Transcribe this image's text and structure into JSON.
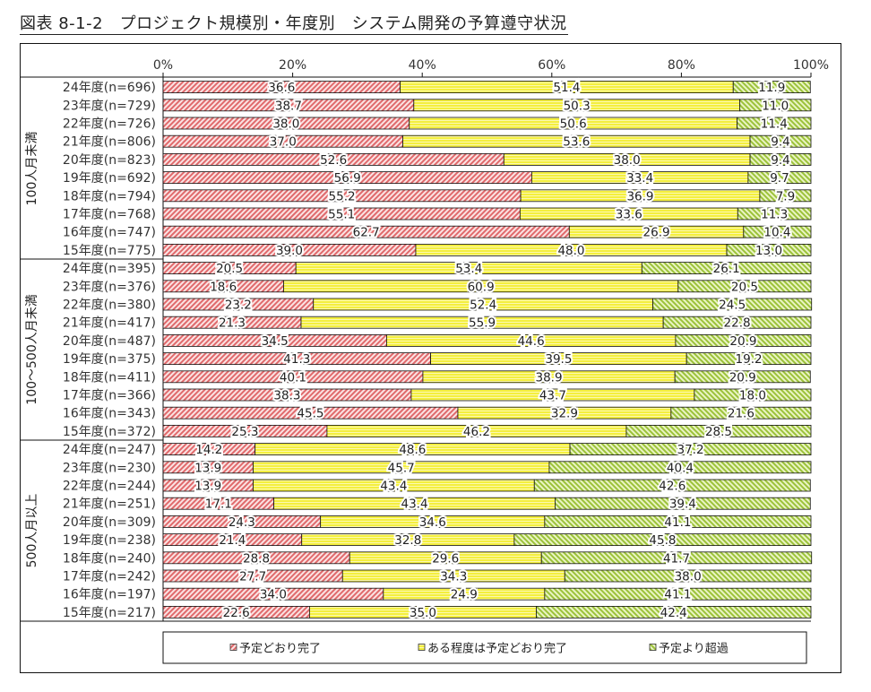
{
  "title": "図表 8-1-2　プロジェクト規模別・年度別　システム開発の予算遵守状況",
  "chart_data": {
    "type": "bar",
    "orientation": "horizontal",
    "stacked": "percent",
    "title": "図表 8-1-2　プロジェクト規模別・年度別　システム開発の予算遵守状況",
    "xlabel": "",
    "ylabel": "",
    "xlim": [
      0,
      100
    ],
    "x_ticks": [
      "0%",
      "20%",
      "40%",
      "60%",
      "80%",
      "100%"
    ],
    "grid": false,
    "legend_position": "bottom",
    "series": [
      {
        "name": "予定どおり完了",
        "color": "#e8787a",
        "pattern": "diagonal-red"
      },
      {
        "name": "ある程度は予定どおり完了",
        "color": "#f6f25a",
        "pattern": "horizontal-yellow"
      },
      {
        "name": "予定より超過",
        "color": "#a8cc4a",
        "pattern": "diagonal-green"
      }
    ],
    "groups": [
      {
        "label": "100人月未満",
        "rows": [
          {
            "label": "24年度(n=696)",
            "values": [
              36.6,
              51.4,
              11.9
            ]
          },
          {
            "label": "23年度(n=729)",
            "values": [
              38.7,
              50.3,
              11.0
            ]
          },
          {
            "label": "22年度(n=726)",
            "values": [
              38.0,
              50.6,
              11.4
            ]
          },
          {
            "label": "21年度(n=806)",
            "values": [
              37.0,
              53.6,
              9.4
            ]
          },
          {
            "label": "20年度(n=823)",
            "values": [
              52.6,
              38.0,
              9.4
            ]
          },
          {
            "label": "19年度(n=692)",
            "values": [
              56.9,
              33.4,
              9.7
            ]
          },
          {
            "label": "18年度(n=794)",
            "values": [
              55.2,
              36.9,
              7.9
            ]
          },
          {
            "label": "17年度(n=768)",
            "values": [
              55.1,
              33.6,
              11.3
            ]
          },
          {
            "label": "16年度(n=747)",
            "values": [
              62.7,
              26.9,
              10.4
            ]
          },
          {
            "label": "15年度(n=775)",
            "values": [
              39.0,
              48.0,
              13.0
            ]
          }
        ]
      },
      {
        "label": "100～500人月未満",
        "rows": [
          {
            "label": "24年度(n=395)",
            "values": [
              20.5,
              53.4,
              26.1
            ]
          },
          {
            "label": "23年度(n=376)",
            "values": [
              18.6,
              60.9,
              20.5
            ]
          },
          {
            "label": "22年度(n=380)",
            "values": [
              23.2,
              52.4,
              24.5
            ]
          },
          {
            "label": "21年度(n=417)",
            "values": [
              21.3,
              55.9,
              22.8
            ]
          },
          {
            "label": "20年度(n=487)",
            "values": [
              34.5,
              44.6,
              20.9
            ]
          },
          {
            "label": "19年度(n=375)",
            "values": [
              41.3,
              39.5,
              19.2
            ]
          },
          {
            "label": "18年度(n=411)",
            "values": [
              40.1,
              38.9,
              20.9
            ]
          },
          {
            "label": "17年度(n=366)",
            "values": [
              38.3,
              43.7,
              18.0
            ]
          },
          {
            "label": "16年度(n=343)",
            "values": [
              45.5,
              32.9,
              21.6
            ]
          },
          {
            "label": "15年度(n=372)",
            "values": [
              25.3,
              46.2,
              28.5
            ]
          }
        ]
      },
      {
        "label": "500人月以上",
        "rows": [
          {
            "label": "24年度(n=247)",
            "values": [
              14.2,
              48.6,
              37.2
            ]
          },
          {
            "label": "23年度(n=230)",
            "values": [
              13.9,
              45.7,
              40.4
            ]
          },
          {
            "label": "22年度(n=244)",
            "values": [
              13.9,
              43.4,
              42.6
            ]
          },
          {
            "label": "21年度(n=251)",
            "values": [
              17.1,
              43.4,
              39.4
            ]
          },
          {
            "label": "20年度(n=309)",
            "values": [
              24.3,
              34.6,
              41.1
            ]
          },
          {
            "label": "19年度(n=238)",
            "values": [
              21.4,
              32.8,
              45.8
            ]
          },
          {
            "label": "18年度(n=240)",
            "values": [
              28.8,
              29.6,
              41.7
            ]
          },
          {
            "label": "17年度(n=242)",
            "values": [
              27.7,
              34.3,
              38.0
            ]
          },
          {
            "label": "16年度(n=197)",
            "values": [
              34.0,
              24.9,
              41.1
            ]
          },
          {
            "label": "15年度(n=217)",
            "values": [
              22.6,
              35.0,
              42.4
            ]
          }
        ]
      }
    ]
  }
}
